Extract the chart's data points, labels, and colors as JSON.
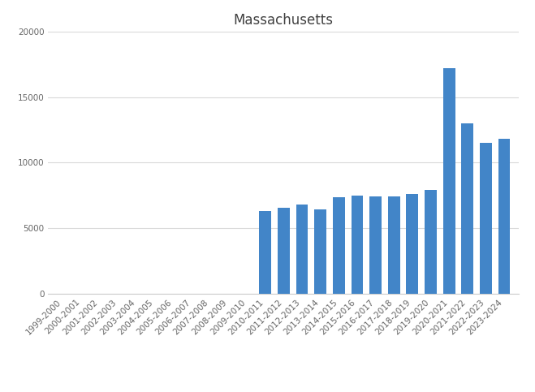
{
  "title": "Massachusetts",
  "categories": [
    "1999-2000",
    "2000-2001",
    "2001-2002",
    "2002-2003",
    "2003-2004",
    "2004-2005",
    "2005-2006",
    "2006-2007",
    "2007-2008",
    "2008-2009",
    "2009-2010",
    "2010-2011",
    "2011-2012",
    "2012-2013",
    "2013-2014",
    "2014-2015",
    "2015-2016",
    "2016-2017",
    "2017-2018",
    "2018-2019",
    "2019-2020",
    "2020-2021",
    "2021-2022",
    "2022-2023",
    "2023-2024"
  ],
  "values": [
    0,
    0,
    0,
    0,
    0,
    0,
    0,
    0,
    0,
    0,
    0,
    6350,
    6550,
    6800,
    6450,
    7400,
    7500,
    7450,
    7450,
    7600,
    7900,
    17200,
    13000,
    11500,
    11800
  ],
  "bar_color": "#4285c8",
  "ylim": [
    0,
    20000
  ],
  "yticks": [
    0,
    5000,
    10000,
    15000,
    20000
  ],
  "background_color": "#ffffff",
  "grid_color": "#d9d9d9",
  "title_fontsize": 12,
  "tick_fontsize": 7.5
}
